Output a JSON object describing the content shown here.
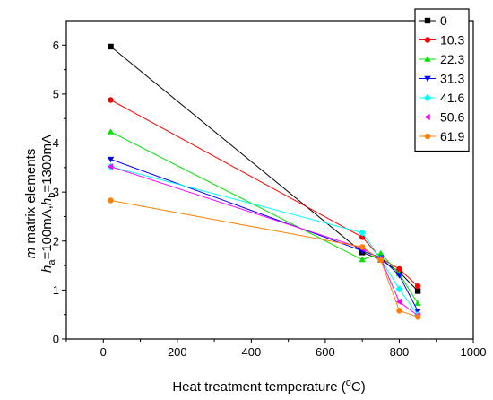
{
  "chart_data": {
    "type": "line",
    "xlabel": "Heat treatment  temperature (°C)",
    "xlabel_parts": {
      "prefix": "Heat treatment  temperature (",
      "superscript": "o",
      "suffix": "C)"
    },
    "ylabel_line1": {
      "italic": "m",
      "text": " matrix elements"
    },
    "ylabel_line2": {
      "h1": "h",
      "sub1": "a",
      "mid": "=100mA,",
      "h2": "h",
      "sub2": "b",
      "end": "=1300mA"
    },
    "xlim": [
      -100,
      1000
    ],
    "ylim": [
      0,
      6.5
    ],
    "xticks": [
      0,
      200,
      400,
      600,
      800,
      1000
    ],
    "yticks": [
      0,
      1,
      2,
      3,
      4,
      5,
      6
    ],
    "grid": false,
    "legend_position": "top-right-outside",
    "x": [
      20,
      700,
      750,
      800,
      850
    ],
    "series": [
      {
        "name": "0",
        "marker": "square",
        "color": "#000000",
        "values": [
          5.97,
          1.77,
          1.62,
          1.37,
          0.98
        ]
      },
      {
        "name": "10.3",
        "marker": "circle",
        "color": "#ff0000",
        "values": [
          4.88,
          2.08,
          1.65,
          1.43,
          1.08
        ]
      },
      {
        "name": "22.3",
        "marker": "triangle-up",
        "color": "#00e000",
        "values": [
          4.23,
          1.62,
          1.75,
          1.33,
          0.73
        ]
      },
      {
        "name": "31.3",
        "marker": "triangle-down",
        "color": "#0000ff",
        "values": [
          3.67,
          1.8,
          1.66,
          1.3,
          0.57
        ]
      },
      {
        "name": "41.6",
        "marker": "diamond",
        "color": "#00ffff",
        "values": [
          3.52,
          2.17,
          1.63,
          1.02,
          0.49
        ]
      },
      {
        "name": "50.6",
        "marker": "triangle-left",
        "color": "#ff00ff",
        "values": [
          3.52,
          1.85,
          1.64,
          0.76,
          0.48
        ]
      },
      {
        "name": "61.9",
        "marker": "circle",
        "color": "#ff8000",
        "values": [
          2.83,
          1.88,
          1.61,
          0.58,
          0.45
        ]
      }
    ]
  }
}
